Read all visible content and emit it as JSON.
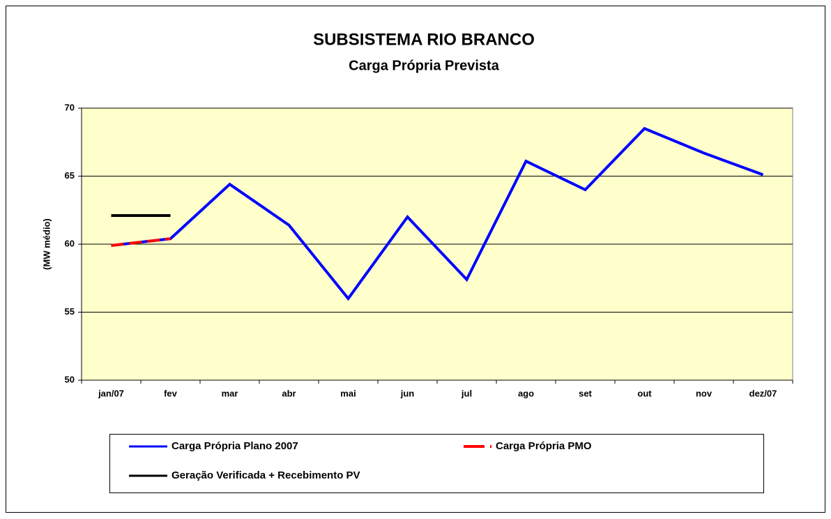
{
  "chart_data": {
    "type": "line",
    "title": "SUBSISTEMA RIO BRANCO",
    "subtitle": "Carga Própria Prevista",
    "y_label": "(MW médio)",
    "categories": [
      "jan/07",
      "fev",
      "mar",
      "abr",
      "mai",
      "jun",
      "jul",
      "ago",
      "set",
      "out",
      "nov",
      "dez/07"
    ],
    "series": [
      {
        "name": "Carga Própria Plano 2007",
        "color": "#0000ff",
        "values": [
          59.9,
          60.4,
          64.4,
          61.4,
          56.0,
          62.0,
          57.4,
          66.1,
          64.0,
          68.5,
          66.7,
          65.1
        ]
      },
      {
        "name": "Carga Própria PMO",
        "color": "#ff0000",
        "dashed": true,
        "values": [
          59.9,
          60.4,
          null,
          null,
          null,
          null,
          null,
          null,
          null,
          null,
          null,
          null
        ]
      },
      {
        "name": "Geração Verificada + Recebimento PV",
        "color": "#000000",
        "values": [
          62.1,
          62.1,
          null,
          null,
          null,
          null,
          null,
          null,
          null,
          null,
          null,
          null
        ]
      }
    ],
    "ylim": [
      50,
      70
    ],
    "yticks": [
      50,
      55,
      60,
      65,
      70
    ],
    "grid": true,
    "plot_background": "#ffffcc"
  }
}
